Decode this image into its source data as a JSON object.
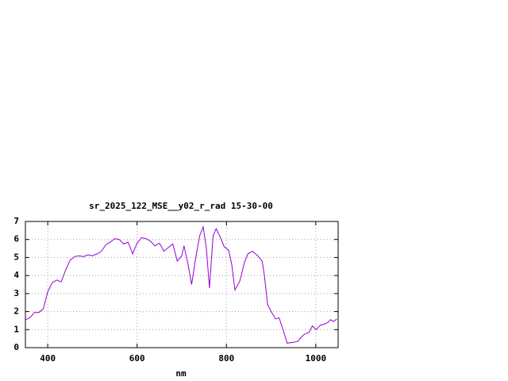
{
  "chart_data": {
    "type": "line",
    "title": "sr_2025_122_MSE__y02_r_rad 15-30-00",
    "x_label": "nm",
    "xlim": [
      350,
      1050
    ],
    "xticks": [
      400,
      600,
      800,
      1000
    ],
    "ylim": [
      0,
      7
    ],
    "yticks": [
      0,
      1,
      2,
      3,
      4,
      5,
      6,
      7
    ],
    "grid": true,
    "series": [
      {
        "color": "#9400d3",
        "x": [
          350,
          360,
          370,
          380,
          390,
          400,
          410,
          420,
          430,
          440,
          450,
          460,
          470,
          480,
          490,
          500,
          510,
          520,
          530,
          540,
          550,
          560,
          570,
          580,
          590,
          600,
          610,
          620,
          630,
          640,
          650,
          660,
          670,
          680,
          690,
          700,
          705,
          715,
          722,
          730,
          740,
          748,
          755,
          762,
          770,
          777,
          785,
          795,
          805,
          812,
          819,
          830,
          840,
          848,
          858,
          870,
          880,
          885,
          892,
          900,
          910,
          918,
          928,
          936,
          950,
          960,
          968,
          975,
          985,
          992,
          1001,
          1010,
          1019,
          1027,
          1033,
          1040,
          1047
        ],
        "values": [
          1.55,
          1.65,
          1.95,
          1.95,
          2.15,
          3.1,
          3.6,
          3.75,
          3.65,
          4.3,
          4.85,
          5.05,
          5.1,
          5.05,
          5.15,
          5.1,
          5.2,
          5.35,
          5.7,
          5.85,
          6.05,
          6.0,
          5.75,
          5.85,
          5.2,
          5.8,
          6.1,
          6.05,
          5.9,
          5.65,
          5.8,
          5.35,
          5.55,
          5.75,
          4.8,
          5.1,
          5.65,
          4.5,
          3.5,
          4.8,
          6.2,
          6.7,
          5.5,
          3.3,
          6.2,
          6.6,
          6.2,
          5.6,
          5.4,
          4.6,
          3.2,
          3.7,
          4.7,
          5.2,
          5.35,
          5.1,
          4.8,
          4.0,
          2.4,
          2.0,
          1.6,
          1.65,
          0.9,
          0.25,
          0.3,
          0.35,
          0.6,
          0.75,
          0.85,
          1.2,
          1.0,
          1.25,
          1.3,
          1.4,
          1.55,
          1.45,
          1.6
        ]
      }
    ]
  }
}
